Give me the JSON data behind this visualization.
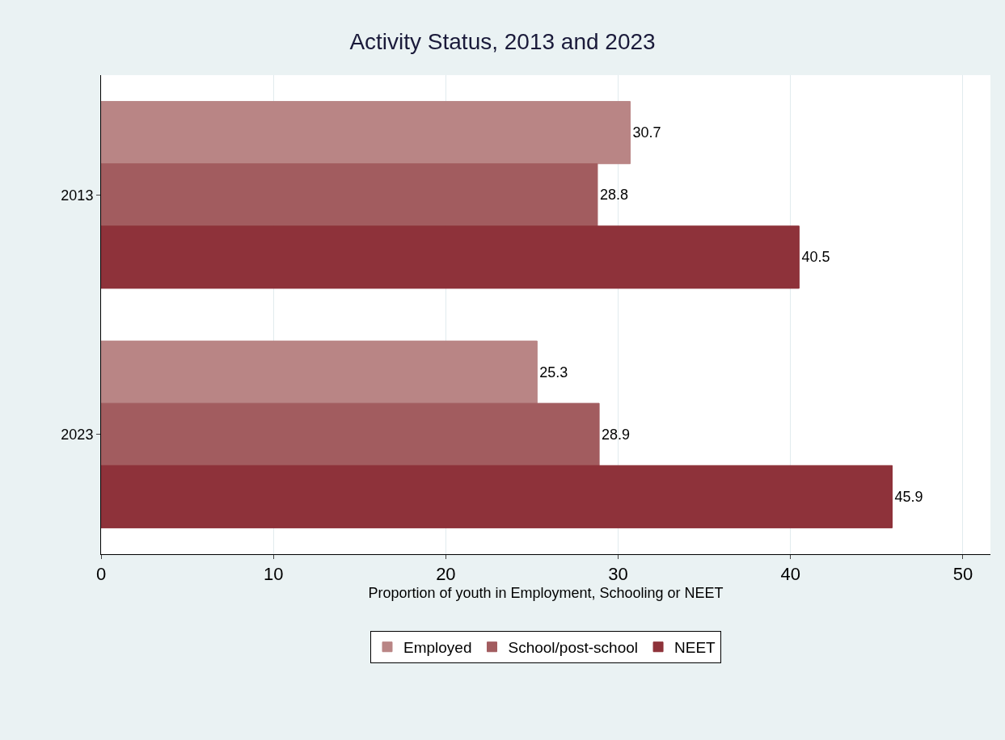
{
  "chart_data": {
    "type": "bar",
    "orientation": "horizontal",
    "title": "Activity Status, 2013 and 2023",
    "xlabel": "Proportion of youth in Employment, Schooling or NEET",
    "categories": [
      "2013",
      "2023"
    ],
    "series": [
      {
        "name": "Employed",
        "color": "#b98585",
        "values": [
          30.7,
          25.3
        ]
      },
      {
        "name": "School/post-school",
        "color": "#a25c5f",
        "values": [
          28.8,
          28.9
        ]
      },
      {
        "name": "NEET",
        "color": "#8e323a",
        "values": [
          40.5,
          45.9
        ]
      }
    ],
    "xlim": [
      0,
      51.6
    ],
    "xticks": [
      0,
      10,
      20,
      30,
      40,
      50
    ],
    "grid": "x",
    "legend": "bottom",
    "data_labels": true
  }
}
